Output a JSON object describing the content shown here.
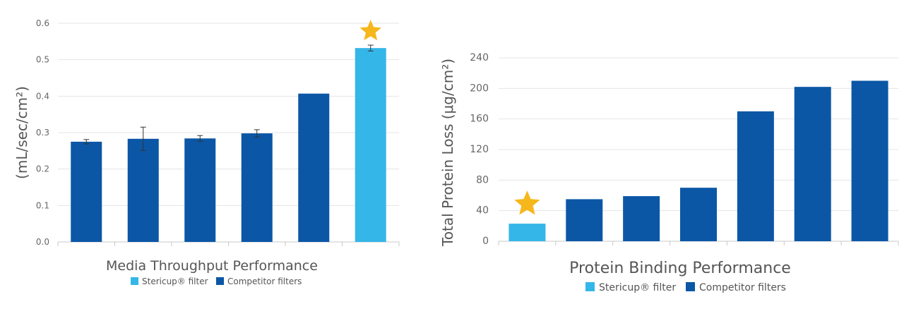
{
  "colors": {
    "stericup": "#35b6e8",
    "competitor": "#0b57a6",
    "star": "#f6b71c",
    "grid": "#e5e5e5",
    "axis": "#c8c8c8",
    "text": "#555555"
  },
  "chart_data": [
    {
      "type": "bar",
      "title": "Media Throughput Performance",
      "ylabel": "(mL/sec/cm²)",
      "xlabel": "",
      "ylim": [
        0,
        0.6
      ],
      "yticks": [
        "0.0",
        "0.1",
        "0.2",
        "0.3",
        "0.4",
        "0.5",
        "0.6"
      ],
      "categories": [
        "",
        "",
        "",
        "",
        "",
        ""
      ],
      "values": [
        0.275,
        0.283,
        0.284,
        0.298,
        0.407,
        0.532
      ],
      "errors": [
        0.006,
        0.032,
        0.008,
        0.01,
        null,
        0.008
      ],
      "series_index": [
        "competitor",
        "competitor",
        "competitor",
        "competitor",
        "competitor",
        "stericup"
      ],
      "star_bar": 5,
      "grid": true,
      "legend": [
        {
          "key": "stericup",
          "label": "Stericup® filter"
        },
        {
          "key": "competitor",
          "label": "Competitor filters"
        }
      ]
    },
    {
      "type": "bar",
      "title": "Protein Binding Performance",
      "ylabel": "Total Protein Loss (μg/cm²)",
      "xlabel": "",
      "ylim": [
        0,
        240
      ],
      "yticks": [
        "0",
        "40",
        "80",
        "120",
        "160",
        "200",
        "240"
      ],
      "categories": [
        "",
        "",
        "",
        "",
        "",
        "",
        ""
      ],
      "values": [
        23,
        55,
        59,
        70,
        170,
        202,
        210
      ],
      "errors": [
        null,
        null,
        null,
        null,
        null,
        null,
        null
      ],
      "series_index": [
        "stericup",
        "competitor",
        "competitor",
        "competitor",
        "competitor",
        "competitor",
        "competitor"
      ],
      "star_bar": 0,
      "grid": true,
      "legend": [
        {
          "key": "stericup",
          "label": "Stericup® filter"
        },
        {
          "key": "competitor",
          "label": "Competitor filters"
        }
      ]
    }
  ]
}
